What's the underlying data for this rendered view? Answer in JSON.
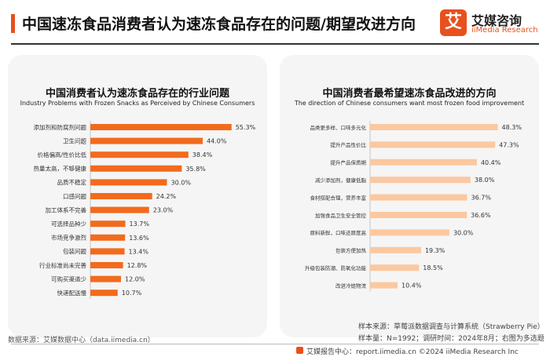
{
  "header": {
    "title": "中国速冻食品消费者认为速冻食品存在的问题/期望改进方向"
  },
  "logo": {
    "mark": "艾",
    "name_cn": "艾媒咨询",
    "name_en": "iiMedia Research"
  },
  "colors": {
    "accent": "#e8501e",
    "left_bar": "#f26b1d",
    "right_bar": "#fbc8a0"
  },
  "chart_data": [
    {
      "type": "bar",
      "orientation": "horizontal",
      "title": "中国消费者认为速冻食品存在的行业问题",
      "subtitle": "Industry Problems with Frozen Snacks as Perceived by Chinese Consumers",
      "categories": [
        "添加剂和防腐剂问题",
        "卫生问题",
        "价格偏高/性价比低",
        "热量太高，不够健康",
        "品质不稳定",
        "口感问题",
        "加工体系不完善",
        "可选择品种少",
        "市场竞争激烈",
        "包装问题",
        "行业标准尚未完善",
        "可购买渠道少",
        "快递配送慢"
      ],
      "values": [
        55.3,
        44.0,
        38.4,
        35.8,
        30.0,
        24.2,
        23.0,
        13.7,
        13.6,
        13.4,
        12.8,
        12.0,
        10.7
      ],
      "labels": [
        "55.3%",
        "44.0%",
        "38.4%",
        "35.8%",
        "30.0%",
        "24.2%",
        "23.0%",
        "13.7%",
        "13.6%",
        "13.4%",
        "12.8%",
        "12.0%",
        "10.7%"
      ],
      "unit": "%",
      "xlim": [
        0,
        60
      ]
    },
    {
      "type": "bar",
      "orientation": "horizontal",
      "title": "中国消费者最希望速冻食品改进的方向",
      "subtitle": "The direction of Chinese consumers want most frozen food improvement",
      "categories": [
        "品类更多样、口味多元化",
        "提升产品性价比",
        "提升产品保质期",
        "减少添加剂，健康低脂",
        "食材搭配合理，营养丰富",
        "加强食品卫生安全管控",
        "原料新鲜，口味还原度高",
        "包装方便加热",
        "升级包装防潮、防氧化功能",
        "改进冷链物流"
      ],
      "values": [
        48.3,
        47.3,
        40.4,
        38.0,
        36.7,
        36.6,
        30.0,
        19.3,
        18.5,
        10.4
      ],
      "labels": [
        "48.3%",
        "47.3%",
        "40.4%",
        "38.0%",
        "36.7%",
        "36.6%",
        "30.0%",
        "19.3%",
        "18.5%",
        "10.4%"
      ],
      "unit": "%",
      "xlim": [
        0,
        52
      ]
    }
  ],
  "notes": {
    "source_left": "数据来源：艾媒数据中心（data.iimedia.cn）",
    "sample_line1": "样本来源：草莓派数据调查与计算系统（Strawberry Pie）",
    "sample_line2": "样本量：N=1992；调研时间：2024年8月；右图为多选题"
  },
  "footer": {
    "text": "艾媒报告中心：report.iimedia.cn    ©2024  iiMedia Research Inc"
  }
}
